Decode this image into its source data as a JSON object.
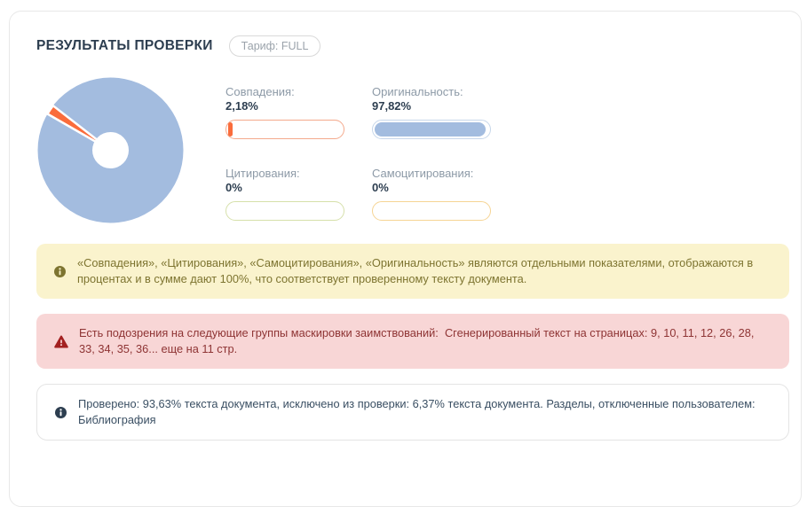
{
  "header": {
    "title": "РЕЗУЛЬТАТЫ ПРОВЕРКИ",
    "tariff_badge": "Тариф: FULL"
  },
  "metrics": [
    {
      "label": "Совпадения:",
      "value": "2,18%",
      "percent": 2.18,
      "bar_border": "#f4a98c",
      "bar_fill": "#fa6c3c"
    },
    {
      "label": "Оригинальность:",
      "value": "97,82%",
      "percent": 97.82,
      "bar_border": "#c6d6ea",
      "bar_fill": "#a3bcdf"
    },
    {
      "label": "Цитирования:",
      "value": "0%",
      "percent": 0,
      "bar_border": "#d6e0aa",
      "bar_fill": "#c3d46e"
    },
    {
      "label": "Самоцитирования:",
      "value": "0%",
      "percent": 0,
      "bar_border": "#f6d494",
      "bar_fill": "#f0c050"
    }
  ],
  "chart_data": {
    "type": "pie",
    "labels": [
      "Совпадения",
      "Оригинальность"
    ],
    "values": [
      2.18,
      97.82
    ],
    "colors": [
      "#fa6c3c",
      "#a3bcdf"
    ],
    "donut_hole_ratio": 0.25,
    "slice_start_deg": 150
  },
  "notices": [
    {
      "kind": "info-yellow",
      "text": "«Совпадения», «Цитирования», «Самоцитирования», «Оригинальность» являются отдельными показателями, отображаются в процентах и в сумме дают 100%, что соответствует проверенному тексту документа."
    },
    {
      "kind": "warning-red",
      "text": "Есть подозрения на следующие группы маскировки заимствований:  Сгенерированный текст на страницах: 9, 10, 11, 12, 26, 28, 33, 34, 35, 36... еще на 11 стр."
    },
    {
      "kind": "info-plain",
      "text": "Проверено: 93,63% текста документа, исключено из проверки: 6,37% текста документа. Разделы, отключенные пользователем: Библиография"
    }
  ],
  "colors": {
    "title": "#2d3e50",
    "label_gray": "#8d9aa7",
    "pie_blue": "#a3bcdf",
    "pie_orange": "#fa6c3c",
    "notice_yellow_bg": "#faf3cd",
    "notice_yellow_text": "#7d7430",
    "notice_red_bg": "#f8d6d6",
    "notice_red_icon": "#a32121",
    "notice_red_text": "#8e3434",
    "notice_plain_border": "#e4e4e4",
    "notice_plain_text": "#3a4f63",
    "info_icon_navy": "#2d3e50",
    "info_icon_olive": "#7d7430"
  }
}
